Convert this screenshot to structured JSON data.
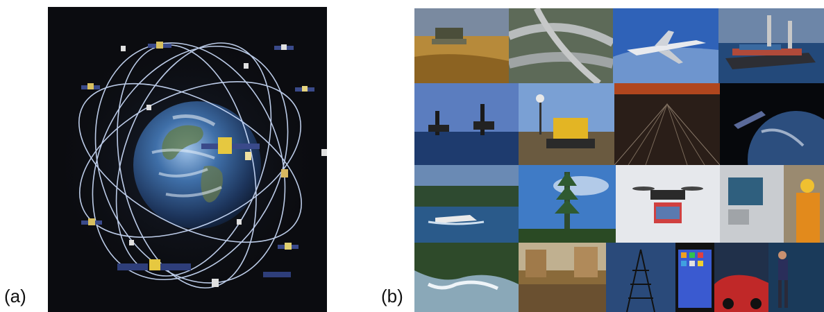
{
  "figure": {
    "panel_a": {
      "label": "(a)",
      "content": "satellite-constellation-image"
    },
    "panel_b": {
      "label": "(b)",
      "tiles": [
        "harvester-field",
        "highway-interchange",
        "airplane",
        "container-ship",
        "oil-platforms",
        "bulldozer-gps",
        "rail-yard",
        "satellite-earth",
        "speedboat",
        "cell-tower",
        "drone",
        "atm-kiosk",
        "surveyor",
        "waterfall-river",
        "flooded-street",
        "power-pylon",
        "smartphone",
        "red-car",
        "hiker"
      ]
    }
  },
  "colors": {
    "space": "#0b0c10",
    "orbit": "#cfe0ff",
    "sky": "#3d6fb8",
    "ocean": "#14305a"
  }
}
